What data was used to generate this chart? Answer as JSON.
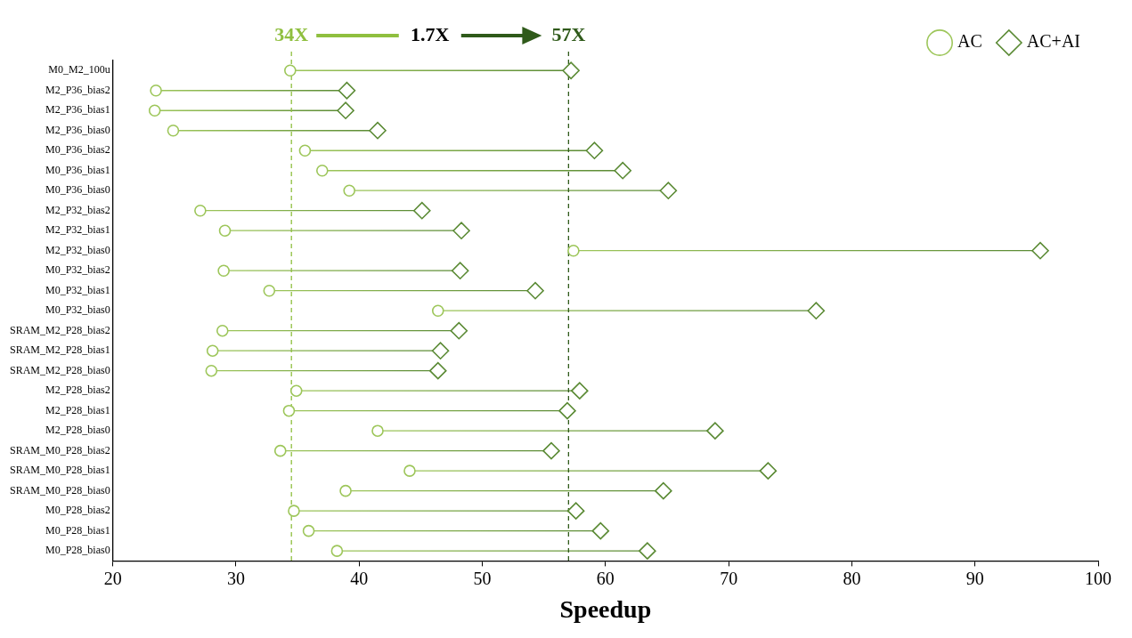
{
  "chart_data": {
    "type": "lollipop",
    "orientation": "horizontal",
    "xlabel": "Speedup",
    "categories": [
      "M0_M2_100u",
      "M2_P36_bias2",
      "M2_P36_bias1",
      "M2_P36_bias0",
      "M0_P36_bias2",
      "M0_P36_bias1",
      "M0_P36_bias0",
      "M2_P32_bias2",
      "M2_P32_bias1",
      "M2_P32_bias0",
      "M0_P32_bias2",
      "M0_P32_bias1",
      "M0_P32_bias0",
      "SRAM_M2_P28_bias2",
      "SRAM_M2_P28_bias1",
      "SRAM_M2_P28_bias0",
      "M2_P28_bias2",
      "M2_P28_bias1",
      "M2_P28_bias0",
      "SRAM_M0_P28_bias2",
      "SRAM_M0_P28_bias1",
      "SRAM_M0_P28_bias0",
      "M0_P28_bias2",
      "M0_P28_bias1",
      "M0_P28_bias0"
    ],
    "series": [
      {
        "name": "AC",
        "color": "#9dc65a",
        "marker": "circle",
        "values": [
          34.4,
          23.5,
          23.4,
          24.9,
          35.6,
          37.0,
          39.2,
          27.1,
          29.1,
          57.4,
          29.0,
          32.7,
          46.4,
          28.9,
          28.1,
          28.0,
          34.9,
          34.3,
          41.5,
          33.6,
          44.1,
          38.9,
          34.7,
          35.9,
          38.2
        ]
      },
      {
        "name": "AC+AI",
        "color": "#5a8a34",
        "marker": "diamond",
        "values": [
          57.2,
          39.0,
          38.9,
          41.5,
          59.1,
          61.4,
          65.1,
          45.1,
          48.3,
          95.3,
          48.2,
          54.3,
          77.1,
          48.1,
          46.6,
          46.4,
          57.9,
          56.9,
          68.9,
          55.6,
          73.2,
          64.7,
          57.6,
          59.6,
          63.4
        ]
      }
    ],
    "xlim": [
      20,
      100
    ],
    "xticks": [
      20,
      30,
      40,
      50,
      60,
      70,
      80,
      90,
      100
    ],
    "ref_lines": [
      {
        "axis": "x",
        "value": 34.5,
        "label": "34X",
        "color": "#8fbf3f",
        "line_style": "dashed"
      },
      {
        "axis": "x",
        "value": 57,
        "label": "57X",
        "color": "#2f5a1a",
        "line_style": "dashed"
      }
    ],
    "annotations": [
      "1.7X"
    ],
    "grid": false,
    "legend": "top right"
  }
}
